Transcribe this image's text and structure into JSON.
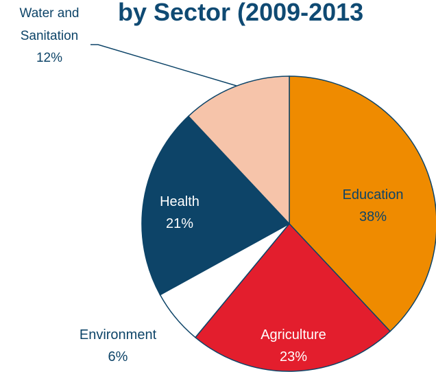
{
  "chart_data": {
    "type": "pie",
    "title": "by Sector (2009-2013",
    "slices": [
      {
        "label": "Education",
        "value": 38,
        "display": "38%",
        "color": "#ef8b00"
      },
      {
        "label": "Agriculture",
        "value": 23,
        "display": "23%",
        "color": "#e31e2d"
      },
      {
        "label": "Environment",
        "value": 6,
        "display": "6%",
        "color": "#ffffff"
      },
      {
        "label": "Health",
        "value": 21,
        "display": "21%",
        "color": "#0d4468"
      },
      {
        "label": "Water and Sanitation",
        "value": 12,
        "display": "12%",
        "color": "#f6c4aa"
      }
    ],
    "outline_color": "#0d4468"
  }
}
